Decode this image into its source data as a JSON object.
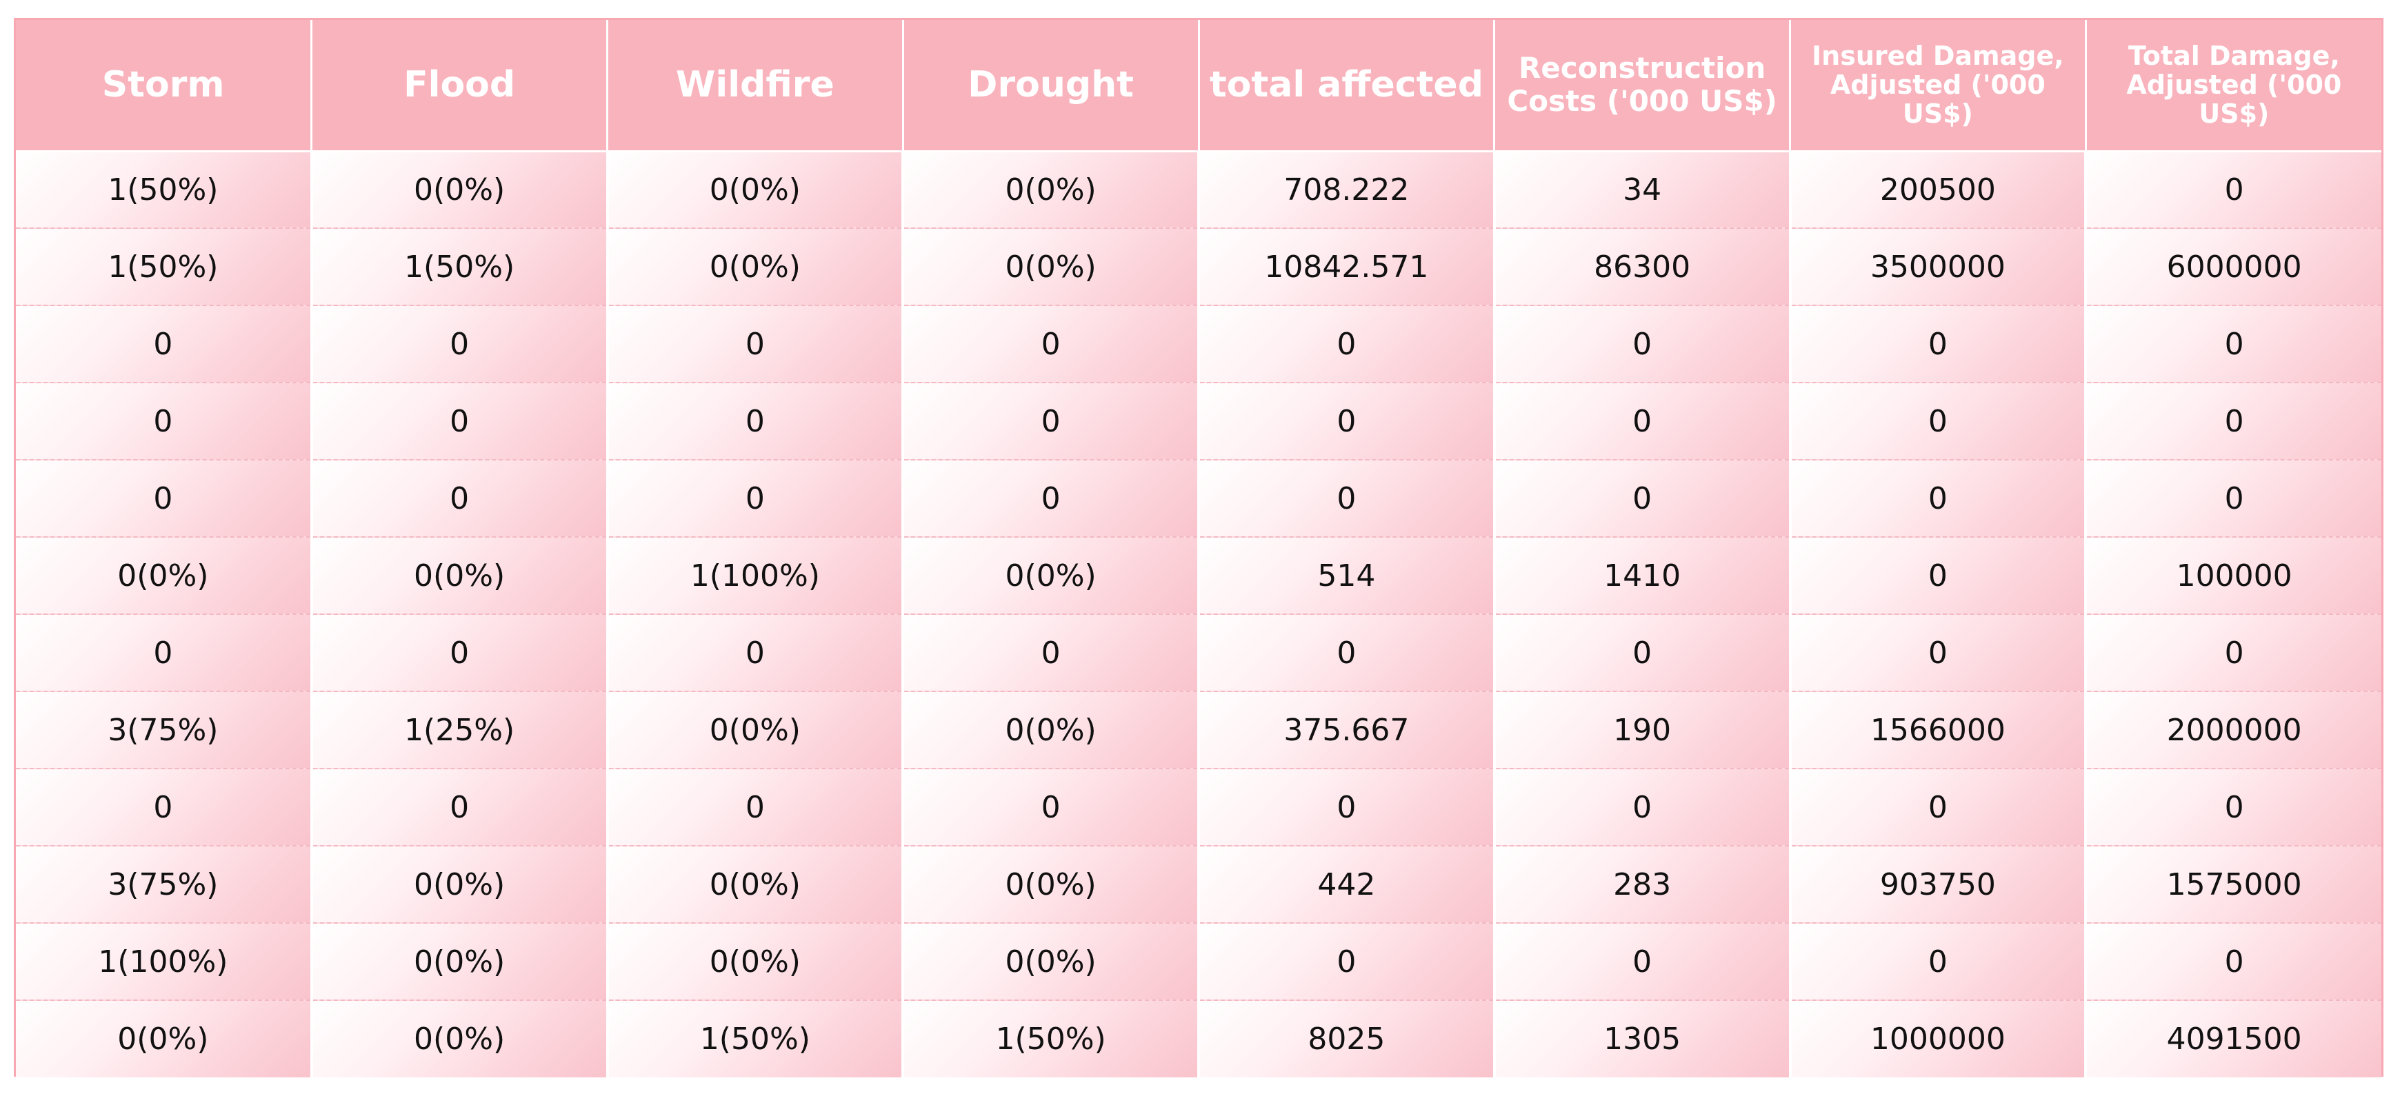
{
  "table": {
    "headers": [
      "Storm",
      "Flood",
      "Wildfire",
      "Drought",
      "total affected",
      "Reconstruction Costs ('000 US$)",
      "Insured Damage, Adjusted ('000 US$)",
      "Total Damage, Adjusted ('000 US$)"
    ],
    "rows": [
      [
        "1(50%)",
        "0(0%)",
        "0(0%)",
        "0(0%)",
        "708.222",
        "34",
        "200500",
        "0"
      ],
      [
        "1(50%)",
        "1(50%)",
        "0(0%)",
        "0(0%)",
        "10842.571",
        "86300",
        "3500000",
        "6000000"
      ],
      [
        "0",
        "0",
        "0",
        "0",
        "0",
        "0",
        "0",
        "0"
      ],
      [
        "0",
        "0",
        "0",
        "0",
        "0",
        "0",
        "0",
        "0"
      ],
      [
        "0",
        "0",
        "0",
        "0",
        "0",
        "0",
        "0",
        "0"
      ],
      [
        "0(0%)",
        "0(0%)",
        "1(100%)",
        "0(0%)",
        "514",
        "1410",
        "0",
        "100000"
      ],
      [
        "0",
        "0",
        "0",
        "0",
        "0",
        "0",
        "0",
        "0"
      ],
      [
        "3(75%)",
        "1(25%)",
        "0(0%)",
        "0(0%)",
        "375.667",
        "190",
        "1566000",
        "2000000"
      ],
      [
        "0",
        "0",
        "0",
        "0",
        "0",
        "0",
        "0",
        "0"
      ],
      [
        "3(75%)",
        "0(0%)",
        "0(0%)",
        "0(0%)",
        "442",
        "283",
        "903750",
        "1575000"
      ],
      [
        "1(100%)",
        "0(0%)",
        "0(0%)",
        "0(0%)",
        "0",
        "0",
        "0",
        "0"
      ],
      [
        "0(0%)",
        "0(0%)",
        "1(50%)",
        "1(50%)",
        "8025",
        "1305",
        "1000000",
        "4091500"
      ]
    ]
  },
  "colors": {
    "header_bg": "#f9b3bd",
    "header_text": "#ffffff",
    "cell_text": "#111111",
    "border": "#f7a8b3"
  }
}
